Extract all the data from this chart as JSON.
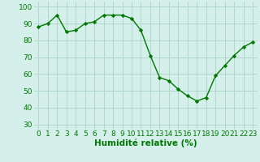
{
  "x": [
    0,
    1,
    2,
    3,
    4,
    5,
    6,
    7,
    8,
    9,
    10,
    11,
    12,
    13,
    14,
    15,
    16,
    17,
    18,
    19,
    20,
    21,
    22,
    23
  ],
  "y": [
    88,
    90,
    95,
    85,
    86,
    90,
    91,
    95,
    95,
    95,
    93,
    86,
    71,
    58,
    56,
    51,
    47,
    44,
    46,
    59,
    65,
    71,
    76,
    79
  ],
  "line_color": "#007700",
  "marker": "D",
  "marker_size": 2.2,
  "bg_color": "#d5f0eb",
  "grid_color": "#b0d8cc",
  "xlabel": "Humidité relative (%)",
  "xlabel_color": "#007700",
  "xlabel_fontsize": 7.5,
  "tick_color": "#007700",
  "tick_fontsize": 6.5,
  "yticks": [
    30,
    40,
    50,
    60,
    70,
    80,
    90,
    100
  ],
  "ylim": [
    27,
    103
  ],
  "xlim": [
    -0.5,
    23.5
  ],
  "linewidth": 1.0
}
